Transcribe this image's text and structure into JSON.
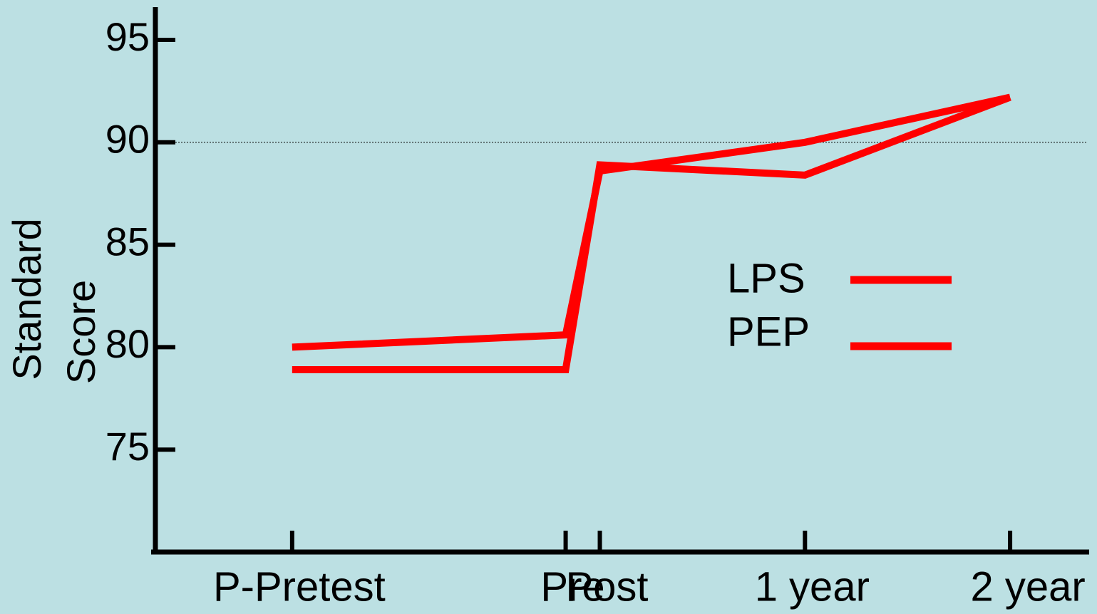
{
  "chart_data": {
    "type": "line",
    "ylabel": [
      "Standard",
      "Score"
    ],
    "x": [
      -16,
      0,
      2,
      14,
      26
    ],
    "xlim": [
      -24,
      30.5
    ],
    "xticks": [
      {
        "value": -16,
        "label": "P-Pretest"
      },
      {
        "value": 0,
        "label": "Pre"
      },
      {
        "value": 2,
        "label": "Post"
      },
      {
        "value": 14,
        "label": "1 year"
      },
      {
        "value": 26,
        "label": "2 year"
      }
    ],
    "ylim": [
      70,
      96.6
    ],
    "yticks": [
      75,
      80,
      85,
      90,
      95
    ],
    "reference_line": 90,
    "legend": "right",
    "series": [
      {
        "name": "LPS",
        "color": "#ff0000",
        "values": [
          80,
          80.6,
          88.6,
          90,
          92.2
        ]
      },
      {
        "name": "PEP",
        "color": "#ff0000",
        "values": [
          78.9,
          78.9,
          88.9,
          88.4,
          92.2
        ]
      }
    ]
  }
}
